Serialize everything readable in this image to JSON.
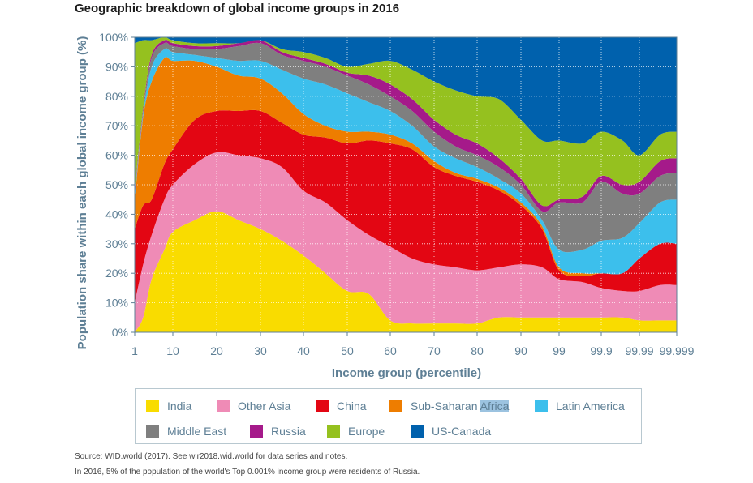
{
  "title": "Geographic breakdown of global income groups in 2016",
  "chart_data": {
    "type": "area",
    "title": "Geographic breakdown of global income groups in 2016",
    "xlabel": "Income group (percentile)",
    "ylabel": "Population share within each global income group (%)",
    "x_tick_labels": [
      "1",
      "10",
      "20",
      "30",
      "40",
      "50",
      "60",
      "70",
      "80",
      "90",
      "99",
      "99.9",
      "99.99",
      "99.999"
    ],
    "y_tick_labels": [
      "0%",
      "10%",
      "20%",
      "30%",
      "40%",
      "50%",
      "60%",
      "70%",
      "80%",
      "90%",
      "100%"
    ],
    "ylim": [
      0,
      100
    ],
    "grid": true,
    "legend_position": "bottom",
    "x": [
      "1",
      "3",
      "5",
      "8",
      "10",
      "15",
      "20",
      "25",
      "30",
      "35",
      "40",
      "45",
      "50",
      "55",
      "60",
      "65",
      "70",
      "75",
      "80",
      "85",
      "90",
      "95",
      "99",
      "99.5",
      "99.9",
      "99.95",
      "99.99",
      "99.995",
      "99.999"
    ],
    "series": [
      {
        "name": "India",
        "color": "#f9dc00",
        "values": [
          0,
          5,
          18,
          28,
          34,
          38,
          41,
          38,
          35,
          31,
          26,
          20,
          14,
          13,
          4,
          3,
          3,
          3,
          3,
          5,
          5,
          5,
          5,
          5,
          5,
          5,
          4,
          4,
          4
        ]
      },
      {
        "name": "Other Asia",
        "color": "#ef8bb6",
        "values": [
          10,
          18,
          15,
          17,
          16,
          19,
          20,
          22,
          24,
          25,
          22,
          24,
          24,
          20,
          25,
          22,
          20,
          19,
          18,
          17,
          18,
          17,
          13,
          12,
          10,
          9,
          10,
          12,
          12
        ]
      },
      {
        "name": "China",
        "color": "#e30613",
        "values": [
          25,
          20,
          12,
          12,
          12,
          15,
          14,
          15,
          16,
          15,
          19,
          22,
          26,
          32,
          35,
          37,
          33,
          31,
          30,
          26,
          20,
          13,
          3,
          2,
          5,
          6,
          11,
          14,
          14
        ]
      },
      {
        "name": "Sub-Saharan Africa",
        "color": "#ee7d00",
        "values": [
          10,
          30,
          40,
          36,
          30,
          20,
          15,
          12,
          11,
          10,
          7,
          4,
          4,
          3,
          3,
          2,
          2,
          1,
          1,
          1,
          1,
          1,
          1,
          1,
          0,
          0,
          0,
          0,
          0
        ]
      },
      {
        "name": "Latin America",
        "color": "#3cbfec",
        "values": [
          1,
          1,
          5,
          3,
          3,
          2,
          3,
          5,
          6,
          8,
          12,
          14,
          13,
          10,
          8,
          6,
          5,
          5,
          4,
          3,
          3,
          2,
          6,
          8,
          11,
          12,
          12,
          14,
          15
        ]
      },
      {
        "name": "Middle East",
        "color": "#7f7f7f",
        "values": [
          1,
          1,
          3,
          2,
          2,
          2,
          3,
          5,
          6,
          5,
          6,
          6,
          6,
          6,
          5,
          5,
          5,
          4,
          4,
          4,
          3,
          3,
          16,
          16,
          20,
          15,
          10,
          9,
          9
        ]
      },
      {
        "name": "Russia",
        "color": "#a51a8a",
        "values": [
          1,
          1,
          1,
          1,
          1,
          1,
          1,
          1,
          1,
          1,
          1,
          1,
          1,
          3,
          4,
          4,
          4,
          4,
          4,
          3,
          2,
          2,
          1,
          2,
          2,
          3,
          4,
          5,
          5
        ]
      },
      {
        "name": "Europe",
        "color": "#95c11f",
        "values": [
          50,
          23,
          5,
          1,
          1,
          1,
          1,
          0,
          0,
          1,
          2,
          2,
          2,
          4,
          8,
          10,
          13,
          15,
          16,
          20,
          20,
          22,
          20,
          18,
          15,
          15,
          9,
          9,
          9
        ]
      },
      {
        "name": "US-Canada",
        "color": "#0061ad",
        "values": [
          2,
          1,
          1,
          0,
          1,
          2,
          2,
          2,
          1,
          4,
          5,
          7,
          10,
          9,
          8,
          11,
          15,
          18,
          20,
          21,
          28,
          35,
          35,
          36,
          32,
          35,
          40,
          33,
          32
        ]
      }
    ]
  },
  "legend": {
    "items": [
      {
        "label": "India",
        "color": "#f9dc00"
      },
      {
        "label": "Other Asia",
        "color": "#ef8bb6"
      },
      {
        "label": "China",
        "color": "#e30613"
      },
      {
        "label": "Sub-Saharan ",
        "label_hl": "Africa",
        "color": "#ee7d00"
      },
      {
        "label": "Latin America",
        "color": "#3cbfec"
      },
      {
        "label": "Middle East",
        "color": "#7f7f7f"
      },
      {
        "label": "Russia",
        "color": "#a51a8a"
      },
      {
        "label": "Europe",
        "color": "#95c11f"
      },
      {
        "label": "US-Canada",
        "color": "#0061ad"
      }
    ]
  },
  "footnotes": {
    "source": "Source: WID.world (2017). See wir2018.wid.world for data series and notes.",
    "note": "In 2016, 5% of the population of the world's Top 0.001% income group were residents of Russia."
  }
}
